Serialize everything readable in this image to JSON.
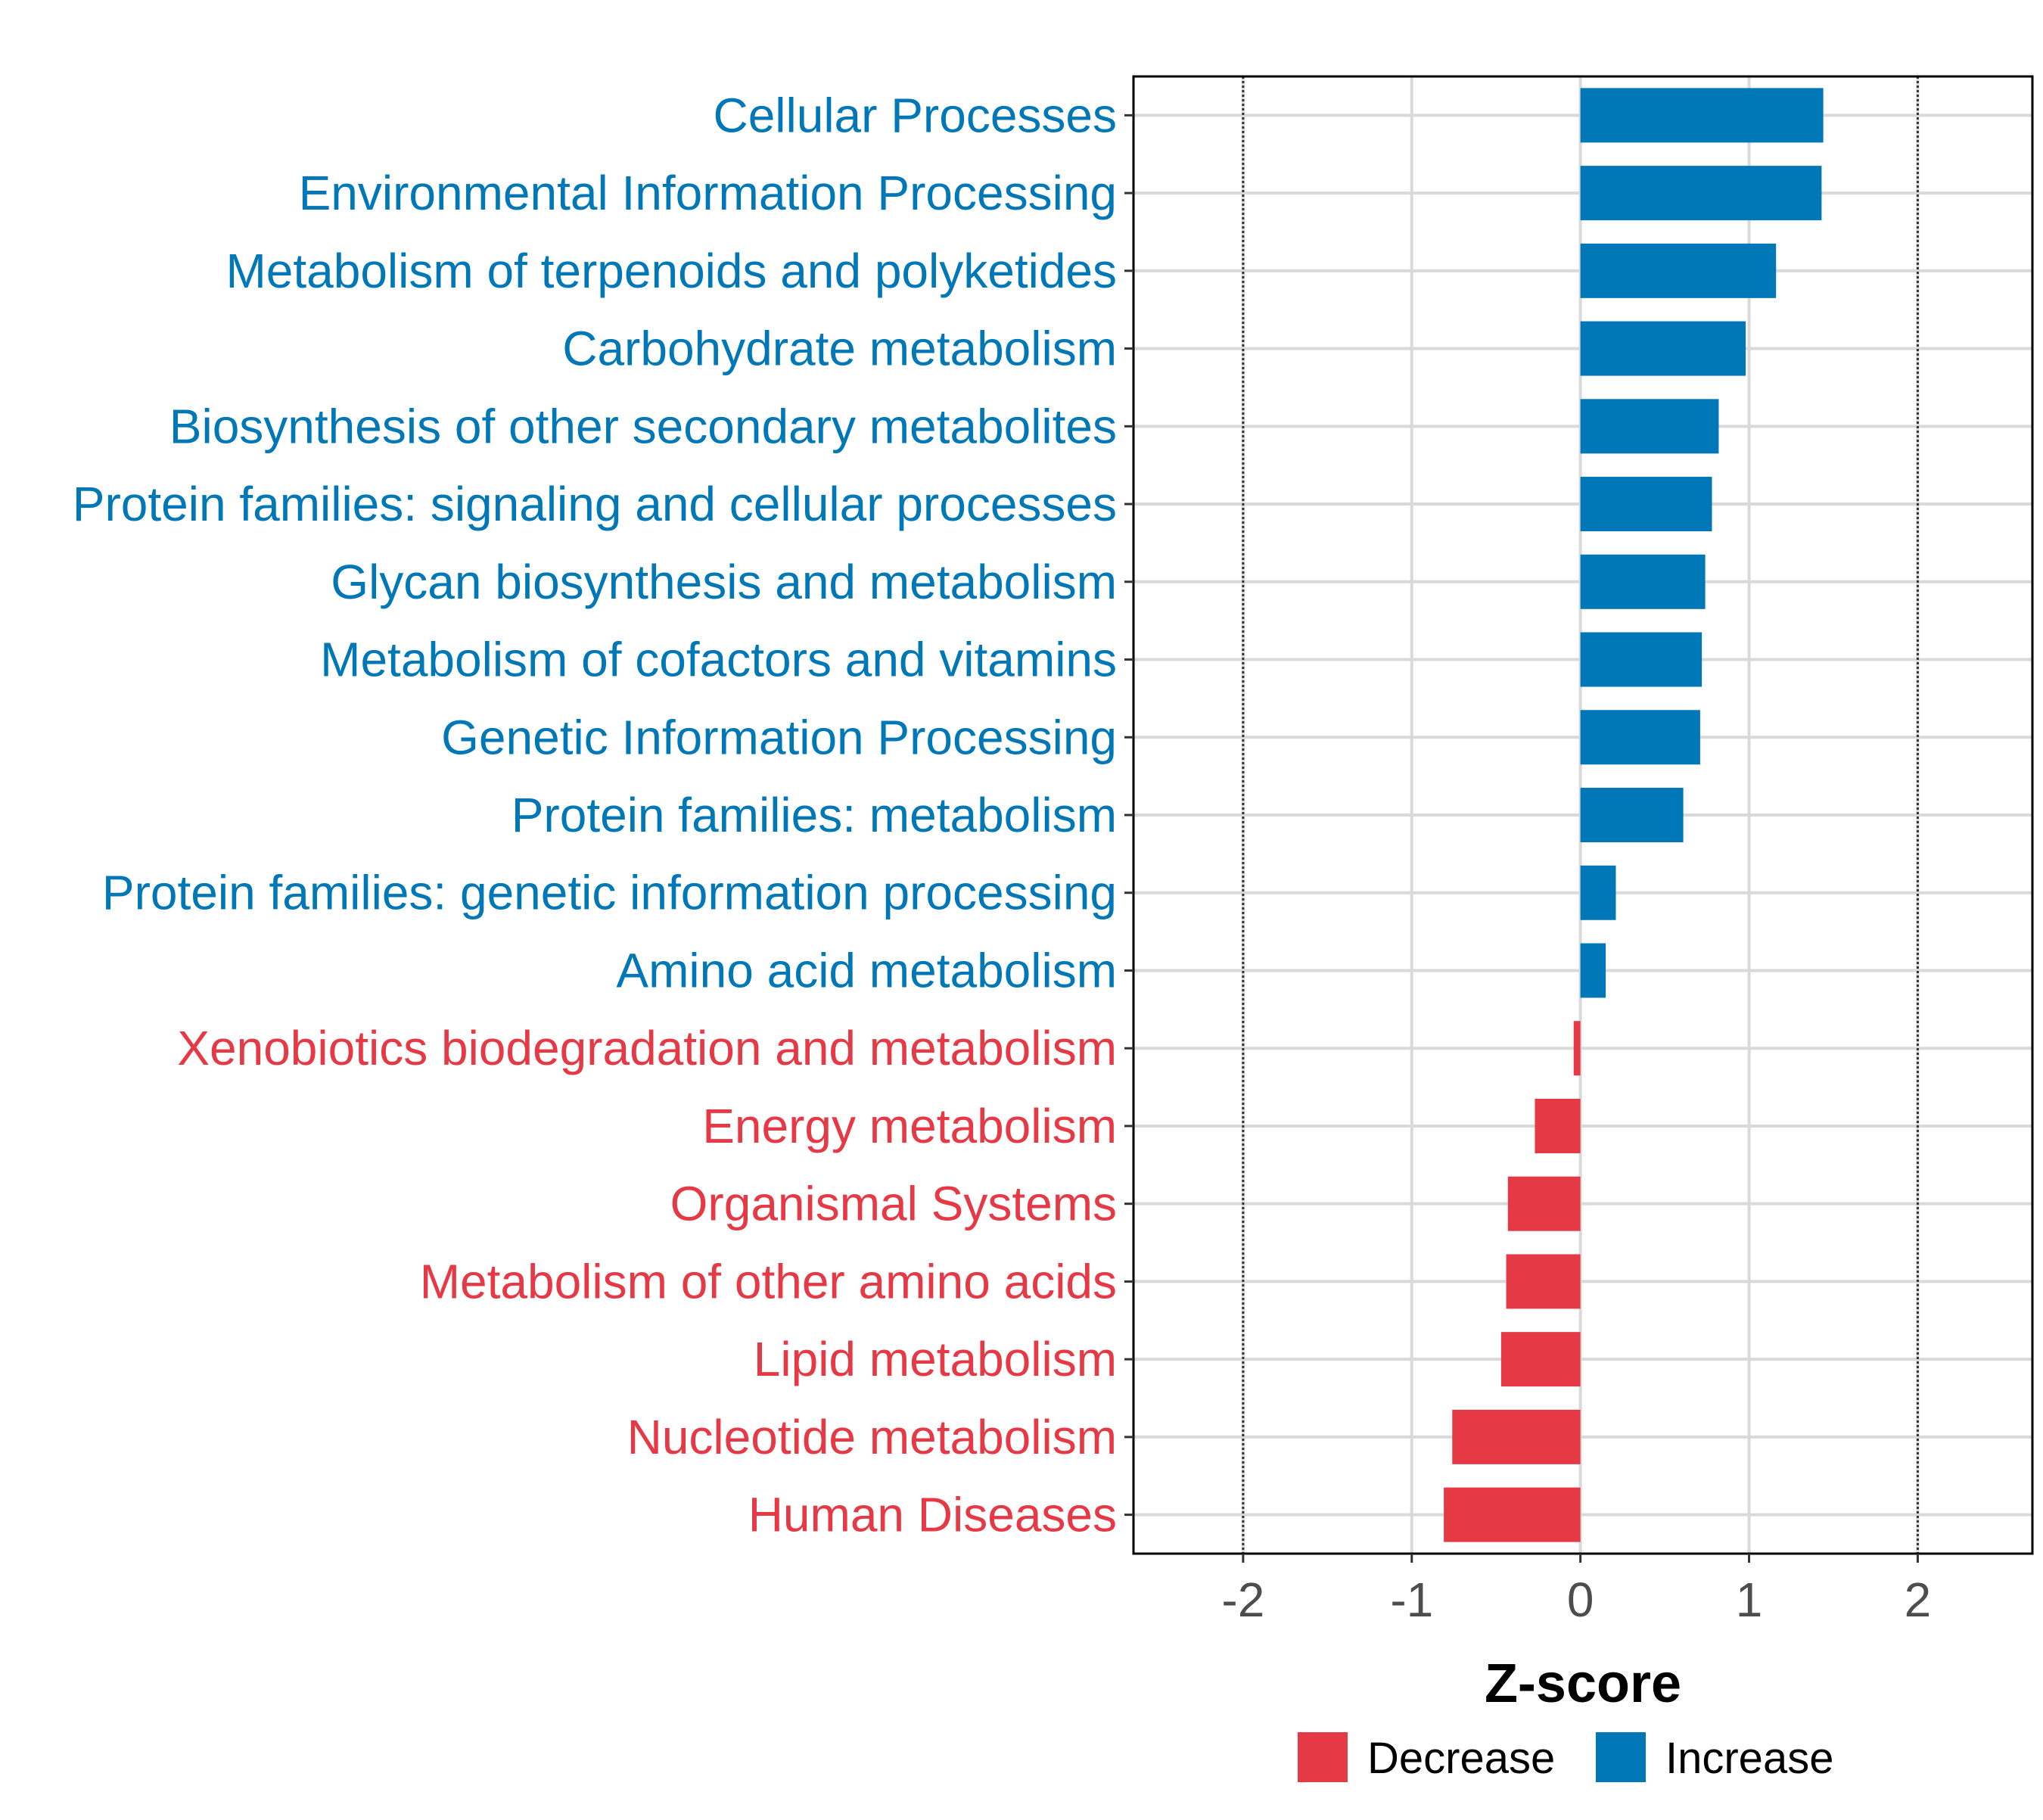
{
  "chart_data": {
    "type": "bar",
    "orientation": "horizontal",
    "title": "",
    "xlabel": "Z-score",
    "ylabel": "",
    "xlim": [
      -2.65,
      2.68
    ],
    "xticks": [
      -2,
      -1,
      0,
      1,
      2
    ],
    "xtick_labels": [
      "-2",
      "-1",
      "0",
      "1",
      "2"
    ],
    "reference_lines": [
      -2,
      2
    ],
    "grid": true,
    "categories": [
      "Cellular Processes",
      "Environmental Information Processing",
      "Metabolism of terpenoids and polyketides",
      "Carbohydrate metabolism",
      "Biosynthesis of other secondary metabolites",
      "Protein families: signaling and cellular processes",
      "Glycan biosynthesis and metabolism",
      "Metabolism of cofactors and vitamins",
      "Genetic Information Processing",
      "Protein families: metabolism",
      "Protein families: genetic information processing",
      "Amino acid metabolism",
      "Xenobiotics biodegradation and metabolism",
      "Energy metabolism",
      "Organismal Systems",
      "Metabolism of other amino acids",
      "Lipid metabolism",
      "Nucleotide metabolism",
      "Human Diseases"
    ],
    "values": [
      1.44,
      1.43,
      1.16,
      0.98,
      0.82,
      0.78,
      0.74,
      0.72,
      0.71,
      0.61,
      0.21,
      0.15,
      -0.04,
      -0.27,
      -0.43,
      -0.44,
      -0.47,
      -0.76,
      -0.81
    ],
    "groups": [
      "Increase",
      "Increase",
      "Increase",
      "Increase",
      "Increase",
      "Increase",
      "Increase",
      "Increase",
      "Increase",
      "Increase",
      "Increase",
      "Increase",
      "Decrease",
      "Decrease",
      "Decrease",
      "Decrease",
      "Decrease",
      "Decrease",
      "Decrease"
    ],
    "legend": {
      "position": "bottom",
      "entries": [
        {
          "label": "Decrease",
          "color": "#e63946"
        },
        {
          "label": "Increase",
          "color": "#0077b6"
        }
      ]
    },
    "colors": {
      "Increase": "#0077b6",
      "Decrease": "#e63946",
      "grid": "#d9d9d9",
      "axis": "#000000",
      "tick_text": "#4d4d4d"
    }
  }
}
